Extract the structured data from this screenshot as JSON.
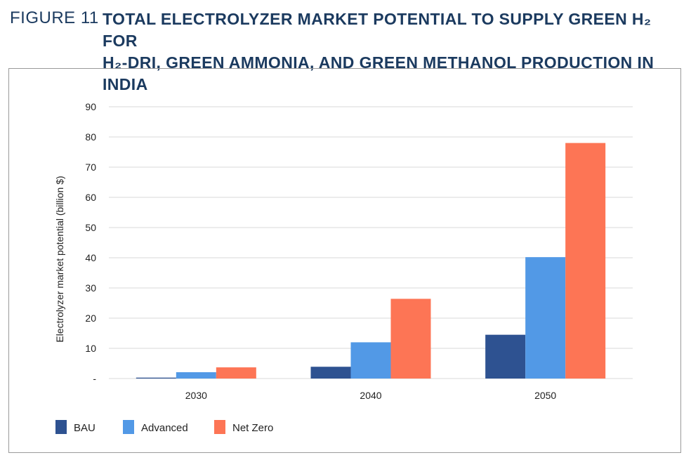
{
  "figure": {
    "label": "FIGURE 11",
    "title_line1": "TOTAL ELECTROLYZER MARKET POTENTIAL TO SUPPLY GREEN H₂ FOR",
    "title_line2": "H₂-DRI, GREEN AMMONIA, AND GREEN METHANOL PRODUCTION IN INDIA"
  },
  "chart_data": {
    "type": "bar",
    "title": "TOTAL ELECTROLYZER MARKET POTENTIAL TO SUPPLY GREEN H₂ FOR H₂-DRI, GREEN AMMONIA, AND GREEN METHANOL PRODUCTION IN INDIA",
    "xlabel": "",
    "ylabel": "Electrolyzer market potential (billion $)",
    "categories": [
      "2030",
      "2040",
      "2050"
    ],
    "series": [
      {
        "name": "BAU",
        "color": "#2e5291",
        "values": [
          0.3,
          3.9,
          14.5
        ]
      },
      {
        "name": "Advanced",
        "color": "#5299e6",
        "values": [
          2.1,
          12.0,
          40.2
        ]
      },
      {
        "name": "Net Zero",
        "color": "#fd7555",
        "values": [
          3.7,
          26.4,
          78.0
        ]
      }
    ],
    "ylim": [
      0,
      90
    ],
    "yticks": [
      0,
      10,
      20,
      30,
      40,
      50,
      60,
      70,
      80,
      90
    ],
    "ytick_labels": [
      "-",
      "10",
      "20",
      "30",
      "40",
      "50",
      "60",
      "70",
      "80",
      "90"
    ],
    "grid": true,
    "legend_position": "bottom-left"
  }
}
